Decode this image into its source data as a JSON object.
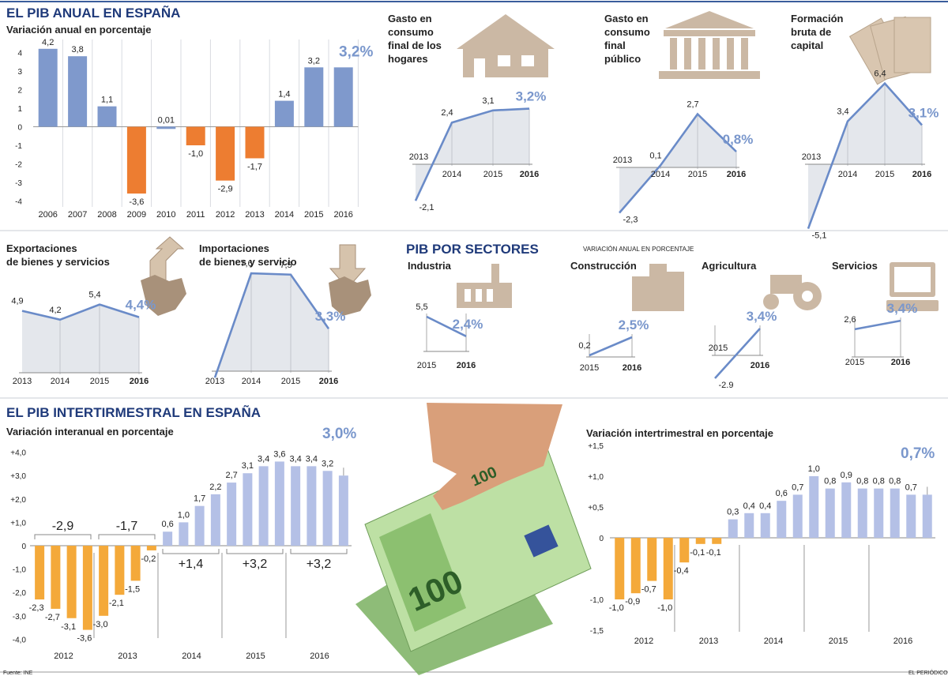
{
  "colors": {
    "accent": "#1f3a7a",
    "blue_bar": "#7f99cc",
    "orange_bar": "#ed7d31",
    "light_blue_bar": "#b4c0e6",
    "amber_bar": "#f4a93a",
    "area_fill": "#e4e7ec",
    "line": "#6a8bc8",
    "icon": "#cbb8a4"
  },
  "top": {
    "title": "EL PIB ANUAL EN ESPAÑA",
    "subtitle": "Variación anual en porcentaje",
    "highlight": "3,2%"
  },
  "mid": {
    "sectors_title": "PIB POR SECTORES",
    "sectors_note": "VARIACIÓN ANUAL EN PORCENTAJE"
  },
  "bottom": {
    "title": "EL PIB INTERTIRMESTRAL EN ESPAÑA",
    "left_subtitle": "Variación interanual en porcentaje",
    "left_highlight": "3,0%",
    "right_subtitle": "Variación intertrimestral en porcentaje",
    "right_highlight": "0,7%"
  },
  "footer": {
    "source": "Fuente: INE",
    "credit": "EL PERIÓDICO"
  },
  "chart_data": [
    {
      "id": "annual",
      "type": "bar",
      "title": "EL PIB ANUAL EN ESPAÑA",
      "categories": [
        "2006",
        "2007",
        "2008",
        "2009",
        "2010",
        "2011",
        "2012",
        "2013",
        "2014",
        "2015",
        "2016"
      ],
      "values": [
        4.2,
        3.8,
        1.1,
        -3.6,
        0.01,
        -1.0,
        -2.9,
        -1.7,
        1.4,
        3.2,
        3.2
      ],
      "labels": [
        "4,2",
        "3,8",
        "1,1",
        "-3,6",
        "0,01",
        "-1,0",
        "-2,9",
        "-1,7",
        "1,4",
        "3,2",
        "3,2%"
      ],
      "yticks": [
        "4",
        "3",
        "2",
        "1",
        "0",
        "-1",
        "-2",
        "-3",
        "-4"
      ],
      "ylim": [
        -4.6,
        4.6
      ]
    },
    {
      "id": "hogares",
      "type": "line",
      "title": "Gasto en consumo final de los hogares",
      "x": [
        "2013",
        "2014",
        "2015",
        "2016"
      ],
      "values": [
        -2.1,
        2.4,
        3.1,
        3.2
      ],
      "labels": [
        "-2,1",
        "2,4",
        "3,1",
        "3,2%"
      ]
    },
    {
      "id": "publico",
      "type": "line",
      "title": "Gasto en consumo final público",
      "x": [
        "2013",
        "2014",
        "2015",
        "2016"
      ],
      "values": [
        -2.3,
        0.1,
        2.7,
        0.8
      ],
      "labels": [
        "-2,3",
        "0,1",
        "2,7",
        "0,8%"
      ]
    },
    {
      "id": "capital",
      "type": "line",
      "title": "Formación bruta de capital",
      "x": [
        "2013",
        "2014",
        "2015",
        "2016"
      ],
      "values": [
        -5.1,
        3.4,
        6.4,
        3.1
      ],
      "labels": [
        "-5,1",
        "3,4",
        "6,4",
        "3,1%"
      ]
    },
    {
      "id": "exportaciones",
      "type": "area",
      "title": "Exportaciones de bienes y servicios",
      "x": [
        "2013",
        "2014",
        "2015",
        "2016"
      ],
      "values": [
        4.9,
        4.2,
        5.4,
        4.4
      ],
      "labels": [
        "4,9",
        "4,2",
        "5,4",
        "4,4%"
      ]
    },
    {
      "id": "importaciones",
      "type": "area",
      "title": "Importaciones de bienes y servicio",
      "x": [
        "2013",
        "2014",
        "2015",
        "2016"
      ],
      "values": [
        -0.5,
        7.6,
        7.5,
        3.3
      ],
      "labels": [
        "",
        "7,6",
        "7,5",
        "3,3%"
      ]
    },
    {
      "id": "industria",
      "type": "line",
      "title": "Industria",
      "x": [
        "2015",
        "2016"
      ],
      "values": [
        5.5,
        2.4
      ],
      "labels": [
        "5,5",
        "2,4%"
      ]
    },
    {
      "id": "construccion",
      "type": "line",
      "title": "Construcción",
      "x": [
        "2015",
        "2016"
      ],
      "values": [
        0.2,
        2.5
      ],
      "labels": [
        "0,2",
        "2,5%"
      ]
    },
    {
      "id": "agricultura",
      "type": "line",
      "title": "Agricultura",
      "x": [
        "2015",
        "2016"
      ],
      "values": [
        -2.9,
        3.4
      ],
      "labels": [
        "-2.9",
        "3,4%"
      ]
    },
    {
      "id": "servicios",
      "type": "line",
      "title": "Servicios",
      "x": [
        "2015",
        "2016"
      ],
      "values": [
        2.6,
        3.4
      ],
      "labels": [
        "2,6",
        "3,4%"
      ]
    },
    {
      "id": "interanual",
      "type": "bar",
      "title": "Variación interanual en porcentaje",
      "years": [
        "2012",
        "2013",
        "2014",
        "2015",
        "2016"
      ],
      "values": [
        -2.3,
        -2.7,
        -3.1,
        -3.6,
        -3.0,
        -2.1,
        -1.5,
        -0.2,
        0.6,
        1.0,
        1.7,
        2.2,
        2.7,
        3.1,
        3.4,
        3.6,
        3.4,
        3.4,
        3.2,
        3.0
      ],
      "labels": [
        "-2,3",
        "-2,7",
        "-3,1",
        "-3,6",
        "-3,0",
        "-2,1",
        "-1,5",
        "-0,2",
        "0,6",
        "1,0",
        "1,7",
        "2,2",
        "2,7",
        "3,1",
        "3,4",
        "3,6",
        "3,4",
        "3,4",
        "3,2",
        "3,0%"
      ],
      "year_averages": [
        "-2,9",
        "-1,7",
        "+1,4",
        "+3,2",
        "+3,2"
      ],
      "yticks": [
        "+4,0",
        "+3,0",
        "+2,0",
        "+1,0",
        "0",
        "-1,0",
        "-2,0",
        "-3,0",
        "-4,0"
      ],
      "ylim": [
        -4,
        4
      ]
    },
    {
      "id": "intertrimestral",
      "type": "bar",
      "title": "Variación intertrimestral en porcentaje",
      "years": [
        "2012",
        "2013",
        "2014",
        "2015",
        "2016"
      ],
      "values": [
        -1.0,
        -0.9,
        -0.7,
        -1.0,
        -0.4,
        -0.1,
        -0.1,
        0.3,
        0.4,
        0.4,
        0.6,
        0.7,
        1.0,
        0.8,
        0.9,
        0.8,
        0.8,
        0.8,
        0.7,
        0.7
      ],
      "labels": [
        "-1,0",
        "-0,9",
        "-0,7",
        "-1,0",
        "-0,4",
        "-0,1",
        "-0,1",
        "0,3",
        "0,4",
        "0,4",
        "0,6",
        "0,7",
        "1,0",
        "0,8",
        "0,9",
        "0,8",
        "0,8",
        "0,8",
        "0,7",
        "0,7%"
      ],
      "yticks": [
        "+1,5",
        "+1,0",
        "+0,5",
        "0",
        "-1,0",
        "-1,5"
      ],
      "ylim": [
        -1.5,
        1.5
      ]
    }
  ]
}
